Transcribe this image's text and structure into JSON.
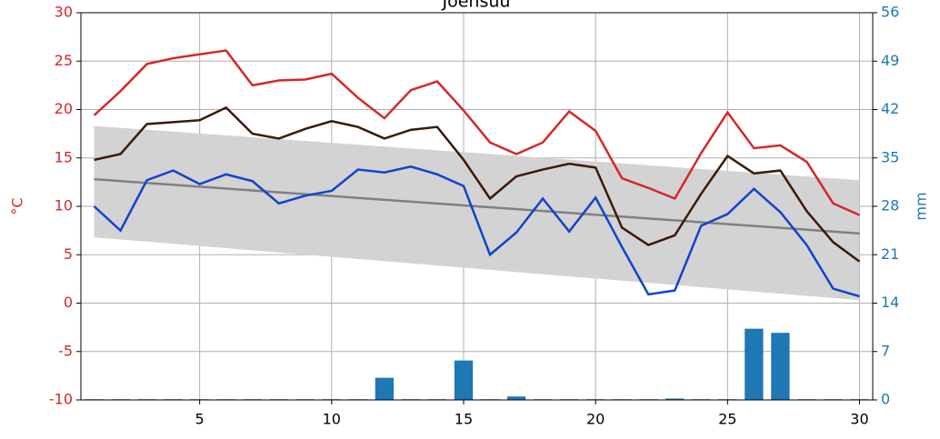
{
  "chart_data": {
    "type": "line",
    "title": "Joensuu",
    "ylabel": "°C",
    "y2label": "mm",
    "x": [
      1,
      2,
      3,
      4,
      5,
      6,
      7,
      8,
      9,
      10,
      11,
      12,
      13,
      14,
      15,
      16,
      17,
      18,
      19,
      20,
      21,
      22,
      23,
      24,
      25,
      26,
      27,
      28,
      29,
      30
    ],
    "xlim": [
      0.5,
      30.5
    ],
    "xticks": [
      5,
      10,
      15,
      20,
      25,
      30
    ],
    "ylim": [
      -10,
      30
    ],
    "yticks": [
      -10,
      -5,
      0,
      5,
      10,
      15,
      20,
      25,
      30
    ],
    "y2lim": [
      0,
      56
    ],
    "y2ticks": [
      0,
      7,
      14,
      21,
      28,
      35,
      42,
      49,
      56
    ],
    "grid": true,
    "ycolor": "#d62728",
    "y2color": "#1f77b4",
    "normal": {
      "x": [
        1,
        30
      ],
      "mean": [
        12.8,
        7.2
      ],
      "upper": [
        18.3,
        12.7
      ],
      "lower": [
        6.8,
        0.3
      ],
      "band_color": "#d3d3d3",
      "line_color": "#808080"
    },
    "bars": {
      "type": "bar",
      "axis": "y2",
      "color": "#1f77b4",
      "values": [
        0.1,
        0.1,
        0.1,
        0.1,
        0.1,
        0.1,
        0.1,
        0.1,
        0.1,
        0.1,
        0.1,
        3.2,
        0.1,
        0.1,
        5.7,
        0.1,
        0.5,
        0.1,
        0.1,
        0.1,
        0.1,
        0.1,
        0.2,
        0.1,
        0.1,
        10.3,
        9.7,
        0.1,
        0.1,
        0.1
      ]
    },
    "series": [
      {
        "color": "#d62728",
        "values": [
          19.4,
          21.9,
          24.7,
          25.3,
          25.7,
          26.1,
          22.5,
          23.0,
          23.1,
          23.7,
          21.2,
          19.1,
          22.0,
          22.9,
          19.9,
          16.6,
          15.4,
          16.6,
          19.8,
          17.8,
          12.9,
          11.9,
          10.8,
          15.5,
          19.7,
          16.0,
          16.3,
          14.6,
          10.3,
          9.1
        ]
      },
      {
        "color": "#3b1a08",
        "values": [
          14.8,
          15.4,
          18.5,
          18.7,
          18.9,
          20.2,
          17.5,
          17.0,
          18.0,
          18.8,
          18.2,
          17.0,
          17.9,
          18.2,
          14.8,
          10.8,
          13.1,
          13.8,
          14.4,
          14.0,
          7.8,
          6.0,
          7.0,
          11.3,
          15.2,
          13.4,
          13.7,
          9.5,
          6.3,
          4.3
        ]
      },
      {
        "color": "#1144cc",
        "values": [
          10.0,
          7.5,
          12.7,
          13.7,
          12.3,
          13.3,
          12.6,
          10.3,
          11.1,
          11.6,
          13.8,
          13.5,
          14.1,
          13.3,
          12.1,
          5.0,
          7.3,
          10.8,
          7.4,
          10.9,
          5.8,
          0.9,
          1.3,
          8.0,
          9.2,
          11.8,
          9.4,
          6.0,
          1.5,
          0.7
        ]
      }
    ]
  }
}
